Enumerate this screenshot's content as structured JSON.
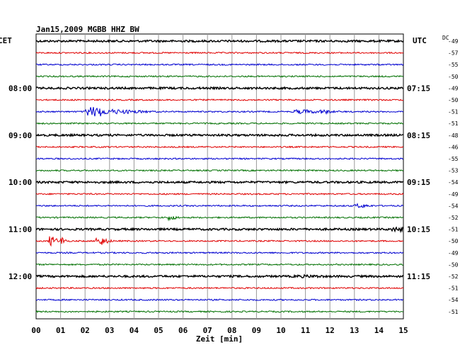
{
  "chart_data": {
    "type": "line",
    "title": "Jan15,2009   MGBB HHZ BW",
    "xlabel": "Zeit [min]",
    "left_axis_label": "CET",
    "right_axis_label": "UTC",
    "offset_column_label": "DC",
    "xlim": [
      0,
      15
    ],
    "x_ticks": [
      "00",
      "01",
      "02",
      "03",
      "04",
      "05",
      "06",
      "07",
      "08",
      "09",
      "10",
      "11",
      "12",
      "13",
      "14",
      "15"
    ],
    "trace_colors": [
      "#000000",
      "#e00000",
      "#0000d0",
      "#007000"
    ],
    "left_time_labels": [
      {
        "trace": 4,
        "label": "08:00"
      },
      {
        "trace": 8,
        "label": "09:00"
      },
      {
        "trace": 12,
        "label": "10:00"
      },
      {
        "trace": 16,
        "label": "11:00"
      },
      {
        "trace": 20,
        "label": "12:00"
      }
    ],
    "right_time_labels": [
      {
        "trace": 4,
        "label": "07:15"
      },
      {
        "trace": 8,
        "label": "08:15"
      },
      {
        "trace": 12,
        "label": "09:15"
      },
      {
        "trace": 16,
        "label": "10:15"
      },
      {
        "trace": 20,
        "label": "11:15"
      }
    ],
    "dc_offsets": [
      "-49",
      "-57",
      "-55",
      "-50",
      "-49",
      "-50",
      "-51",
      "-51",
      "-48",
      "-46",
      "-55",
      "-53",
      "-54",
      "-49",
      "-54",
      "-52",
      "-51",
      "-50",
      "-49",
      "-50",
      "-52",
      "-51",
      "-54",
      "-51"
    ],
    "events": [
      {
        "trace": 6,
        "start": 2.0,
        "end": 2.7,
        "amplitude": 7,
        "tail_end": 5.0
      },
      {
        "trace": 6,
        "start": 10.5,
        "end": 11.2,
        "amplitude": 3,
        "tail_end": 12.5
      },
      {
        "trace": 6,
        "start": 11.6,
        "end": 11.9,
        "amplitude": 3,
        "tail_end": 12.3
      },
      {
        "trace": 14,
        "start": 13.0,
        "end": 13.4,
        "amplitude": 3,
        "tail_end": 13.8
      },
      {
        "trace": 15,
        "start": 5.4,
        "end": 5.6,
        "amplitude": 4,
        "tail_end": 5.9
      },
      {
        "trace": 16,
        "start": 14.5,
        "end": 15.0,
        "amplitude": 3,
        "tail_end": 15.0
      },
      {
        "trace": 17,
        "start": 0.5,
        "end": 0.8,
        "amplitude": 7,
        "tail_end": 1.0
      },
      {
        "trace": 17,
        "start": 1.0,
        "end": 1.15,
        "amplitude": 6,
        "tail_end": 1.3
      },
      {
        "trace": 17,
        "start": 2.4,
        "end": 2.8,
        "amplitude": 6,
        "tail_end": 3.2
      },
      {
        "trace": 20,
        "start": 10.5,
        "end": 11.5,
        "amplitude": 2,
        "tail_end": 11.8
      }
    ]
  }
}
